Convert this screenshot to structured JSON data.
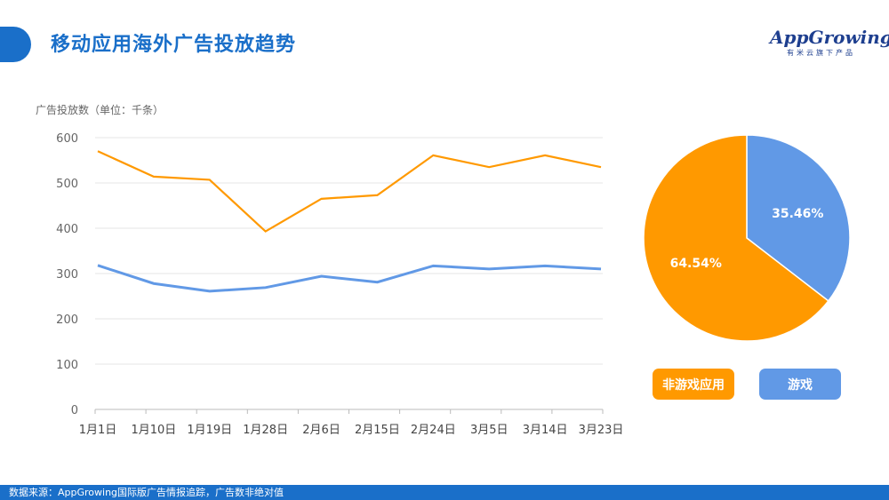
{
  "header": {
    "title": "移动应用海外广告投放趋势",
    "logo_text": "AppGrowing",
    "logo_sub": "有米云旗下产品"
  },
  "footer": {
    "source": "数据来源：AppGrowing国际版广告情报追踪，广告数非绝对值"
  },
  "colors": {
    "accent": "#1a6fc9",
    "orange": "#ff9900",
    "blue": "#6199e6"
  },
  "chart_data": [
    {
      "type": "line",
      "ylabel": "广告投放数（单位：千条）",
      "ylim": [
        0,
        600
      ],
      "yticks": [
        0,
        100,
        200,
        300,
        400,
        500,
        600
      ],
      "grid": true,
      "categories": [
        "1月1日",
        "1月10日",
        "1月19日",
        "1月28日",
        "2月6日",
        "2月15日",
        "2月24日",
        "3月5日",
        "3月14日",
        "3月23日"
      ],
      "series": [
        {
          "name": "非游戏应用",
          "color": "#ff9900",
          "values": [
            570,
            514,
            507,
            393,
            465,
            473,
            561,
            535,
            561,
            535
          ]
        },
        {
          "name": "游戏",
          "color": "#6199e6",
          "values": [
            318,
            278,
            261,
            269,
            294,
            281,
            317,
            310,
            317,
            310
          ]
        }
      ]
    },
    {
      "type": "pie",
      "slices": [
        {
          "name": "游戏",
          "value": 35.46,
          "label": "35.46%",
          "color": "#6199e6"
        },
        {
          "name": "非游戏应用",
          "value": 64.54,
          "label": "64.54%",
          "color": "#ff9900"
        }
      ],
      "legend": [
        {
          "label": "非游戏应用",
          "color": "#ff9900"
        },
        {
          "label": "游戏",
          "color": "#6199e6"
        }
      ],
      "legend_position": "bottom"
    }
  ]
}
